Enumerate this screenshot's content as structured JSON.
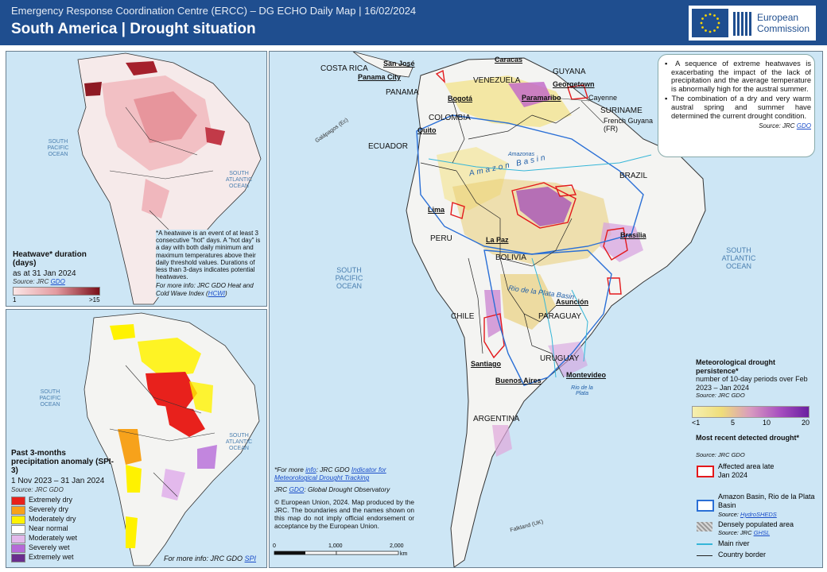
{
  "header": {
    "subtitle": "Emergency Response Coordination Centre (ERCC) – DG ECHO Daily Map | 16/02/2024",
    "title": "South America | Drought situation",
    "logo_line1": "European",
    "logo_line2": "Commission"
  },
  "heatwave_panel": {
    "title": "Heatwave* duration (days)",
    "date": "as at 31 Jan 2024",
    "source_prefix": "Source: JRC ",
    "source_link": "GDO",
    "scale_min": "1",
    "scale_max": ">15",
    "ocean_pacific": "SOUTH PACIFIC OCEAN",
    "ocean_atlantic": "SOUTH ATLANTIC OCEAN",
    "note_p1": "*A heatwave is an event of at least 3 consecutive \"hot\" days. A \"hot day\" is a day with both daily minimum and maximum temperatures above their daily threshold values. Durations of less than 3-days indicates potential heatwaves.",
    "note_more": "For more info: JRC GDO Heat and Cold Wave Index (",
    "note_link": "HCWI",
    "note_end": ")"
  },
  "spi_panel": {
    "title": "Past 3-months precipitation anomaly (SPI-3)",
    "date": "1 Nov 2023 – 31 Jan 2024",
    "source": "Source: JRC GDO",
    "ocean_pacific": "SOUTH PACIFIC OCEAN",
    "ocean_atlantic": "SOUTH ATLANTIC OCEAN",
    "more_info": "For more info: JRC GDO ",
    "more_link": "SPI",
    "legend": [
      {
        "label": "Extremely dry",
        "color": "#e8211c"
      },
      {
        "label": "Severely dry",
        "color": "#f7a21b"
      },
      {
        "label": "Moderately dry",
        "color": "#fff200"
      },
      {
        "label": "Near normal",
        "color": "#ffffff"
      },
      {
        "label": "Moderately wet",
        "color": "#e3b9ec"
      },
      {
        "label": "Severely wet",
        "color": "#b56ad8"
      },
      {
        "label": "Extremely wet",
        "color": "#6a2e8e"
      }
    ]
  },
  "main_map": {
    "countries": {
      "costa_rica": "COSTA RICA",
      "panama": "PANAMA",
      "guyana": "GUYANA",
      "venezuela": "VENEZUELA",
      "suriname": "SURINAME",
      "french_guyana": "French Guyana (FR)",
      "colombia": "COLOMBIA",
      "ecuador": "ECUADOR",
      "brazil": "BRAZIL",
      "peru": "PERU",
      "bolivia": "BOLIVIA",
      "chile": "CHILE",
      "paraguay": "PARAGUAY",
      "uruguay": "URUGUAY",
      "argentina": "ARGENTINA"
    },
    "cities": {
      "san_jose": "San José",
      "panama_city": "Panama City",
      "caracas": "Caracas",
      "georgetown": "Georgetown",
      "paramaribo": "Paramaribo",
      "cayenne": "Cayenne",
      "bogota": "Bogotá",
      "quito": "Quito",
      "lima": "Lima",
      "la_paz": "La Paz",
      "brasilia": "Brasília",
      "asuncion": "Asunción",
      "santiago": "Santiago",
      "buenos_aires": "Buenos Aires",
      "montevideo": "Montevideo"
    },
    "labels": {
      "galapagos": "Galápagos (Ec)",
      "amazon_basin": "Amazon Basin",
      "amazon_river": "Amazonas",
      "rio_plata_basin": "Rio de la Plata Basin",
      "rio_plata": "Rio de la Plata",
      "falkland": "Falkland (UK)",
      "ocean_pacific": "SOUTH PACIFIC OCEAN",
      "ocean_atlantic": "SOUTH ATLANTIC OCEAN"
    },
    "info_box": {
      "bullet1": "A sequence of extreme heatwaves is exacerbating the impact of the lack of precipitation and the average temperature is abnormally high for the austral summer.",
      "bullet2": "The combination of a dry and very warm austral spring and summer have determined the current drought condition.",
      "source_prefix": "Source: JRC ",
      "source_link": "GDO"
    },
    "persistence": {
      "title": "Meteorological drought persistence*",
      "subtitle": "number of 10-day periods over Feb 2023 – Jan 2024",
      "source": "Source: JRC GDO",
      "ticks": [
        "<1",
        "5",
        "10",
        "20"
      ]
    },
    "recent": {
      "title": "Most recent detected drought*",
      "source": "Source: JRC GDO",
      "affected": "Affected area late Jan 2024",
      "basins": "Amazon Basin, Rio de la Plata Basin",
      "basins_source_prefix": "Source: ",
      "basins_source_link": "HydroSHEDS",
      "populated": "Densely populated area",
      "populated_source_prefix": "Source: JRC ",
      "populated_source_link": "GHSL",
      "river": "Main river",
      "border": "Country border"
    },
    "footnote": {
      "more_prefix": "*For more ",
      "more_link1": "info",
      "more_mid": ": JRC GDO ",
      "more_link2": "Indicator for Meteorological Drought Tracking",
      "gdo_prefix": "JRC ",
      "gdo_link": "GDO",
      "gdo_suffix": ": Global Drought Observatory",
      "copyright": "© European Union, 2024. Map produced by the JRC. The boundaries and the names shown on this map do not imply official endorsement or acceptance by the European Union."
    },
    "scale": {
      "t0": "0",
      "t1": "1,000",
      "t2": "2,000",
      "unit": "km"
    }
  },
  "colors": {
    "header_bg": "#1f4e8f",
    "sea": "#cde6f5",
    "land": "#f4f4f2",
    "drought_red": "#e3191c",
    "basin_blue": "#2a6fd6"
  }
}
